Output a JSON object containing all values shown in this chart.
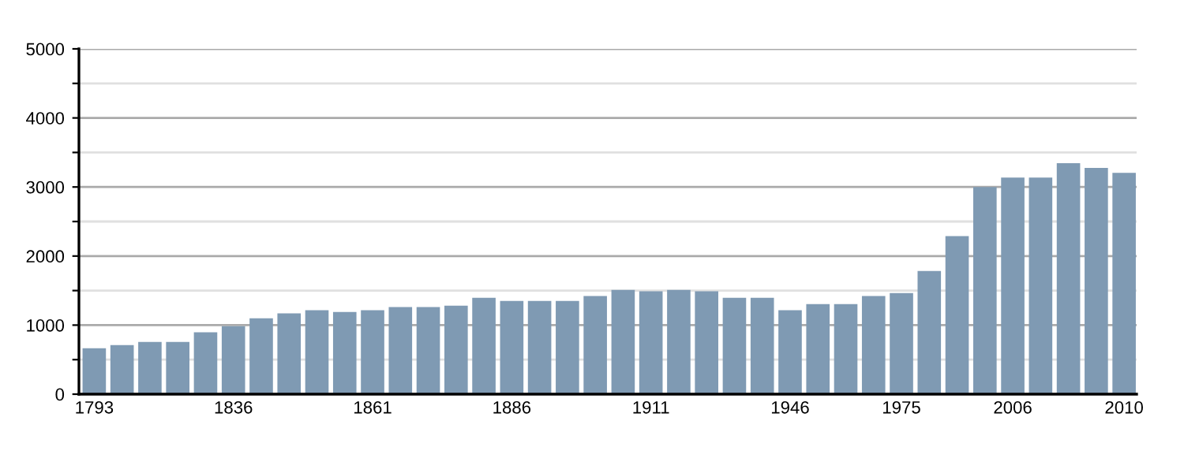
{
  "chart_data": {
    "type": "bar",
    "categories": [
      "1793",
      null,
      null,
      null,
      null,
      "1836",
      null,
      null,
      null,
      null,
      "1861",
      null,
      null,
      null,
      null,
      "1886",
      null,
      null,
      null,
      null,
      "1911",
      null,
      null,
      null,
      null,
      "1946",
      null,
      null,
      null,
      "1975",
      null,
      null,
      null,
      "2006",
      null,
      null,
      null,
      "2010"
    ],
    "values": [
      665,
      710,
      755,
      755,
      895,
      985,
      1100,
      1170,
      1215,
      1190,
      1215,
      1260,
      1260,
      1280,
      1395,
      1350,
      1350,
      1350,
      1420,
      1510,
      1490,
      1510,
      1490,
      1395,
      1395,
      1215,
      1305,
      1305,
      1420,
      1465,
      1785,
      2290,
      3000,
      3135,
      3135,
      3345,
      3275,
      3205
    ],
    "color": "#7f9ab3",
    "ylim": [
      0,
      5000
    ],
    "yticks": [
      0,
      {
        "value": 500,
        "label": null
      },
      1000,
      {
        "value": 1500,
        "label": null
      },
      2000,
      {
        "value": 2500,
        "label": null
      },
      3000,
      {
        "value": 3500,
        "label": null
      },
      4000,
      {
        "value": 4500,
        "label": null
      },
      5000
    ],
    "grid": "y"
  }
}
